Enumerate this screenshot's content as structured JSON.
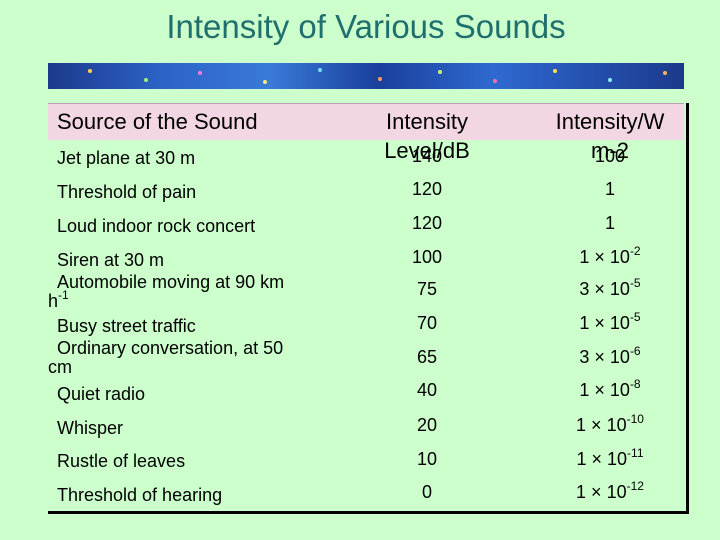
{
  "title": "Intensity of Various Sounds",
  "table": {
    "headers": {
      "source": "Source of the Sound",
      "level_line1": "Intensity",
      "level_line2": "Level/dB",
      "intensity_line1": "Intensity/W",
      "intensity_line2": "m-2"
    },
    "rows": [
      {
        "source": "Jet plane at 30 m",
        "level": "140",
        "intensity": "100"
      },
      {
        "source": "Threshold of pain",
        "level": "120",
        "intensity": "1"
      },
      {
        "source": "Loud indoor rock concert",
        "level": "120",
        "intensity": "1"
      },
      {
        "source": "Siren at 30 m",
        "level": "100",
        "base": "1 × 10",
        "exp": "-2"
      },
      {
        "source": "Automobile moving at 90 km",
        "source_cont": "h",
        "source_cont_exp": "-1",
        "level": "75",
        "base": "3 × 10",
        "exp": "-5"
      },
      {
        "source": "Busy street traffic",
        "level": "70",
        "base": "1 × 10",
        "exp": "-5"
      },
      {
        "source": "Ordinary conversation, at 50",
        "source_cont": "cm",
        "level": "65",
        "base": "3 × 10",
        "exp": "-6"
      },
      {
        "source": "Quiet radio",
        "level": "40",
        "base": "1 × 10",
        "exp": "-8"
      },
      {
        "source": "Whisper",
        "level": "20",
        "base": "1 × 10",
        "exp": "-10"
      },
      {
        "source": "Rustle of leaves",
        "level": "10",
        "base": "1 × 10",
        "exp": "-11"
      },
      {
        "source": "Threshold of hearing",
        "level": "0",
        "base": "1 × 10",
        "exp": "-12"
      }
    ]
  }
}
